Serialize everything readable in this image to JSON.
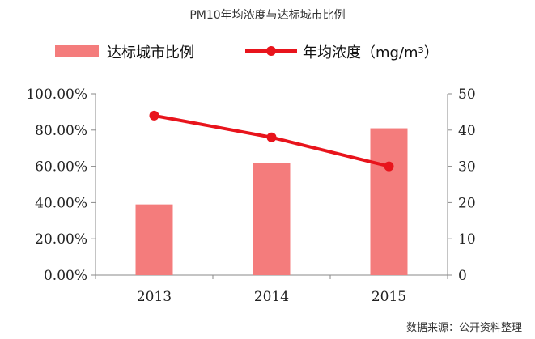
{
  "title": "PM10年均浓度与达标城市比例",
  "source": "数据来源：公开资料整理",
  "chart_data": {
    "type": "bar+line",
    "categories": [
      "2013",
      "2014",
      "2015"
    ],
    "series": [
      {
        "name": "达标城市比例",
        "type": "bar",
        "axis": "left",
        "color": "#f47c7c",
        "values": [
          0.39,
          0.62,
          0.81
        ]
      },
      {
        "name": "年均浓度（mg/m³）",
        "type": "line",
        "axis": "right",
        "color": "#e8141c",
        "values": [
          44,
          38,
          30
        ]
      }
    ],
    "y_left": {
      "min": 0,
      "max": 1,
      "ticks": [
        "0.00%",
        "20.00%",
        "40.00%",
        "60.00%",
        "80.00%",
        "100.00%"
      ]
    },
    "y_right": {
      "min": 0,
      "max": 50,
      "ticks": [
        "0",
        "10",
        "20",
        "30",
        "40",
        "50"
      ]
    },
    "legend_position": "top",
    "grid": false
  }
}
